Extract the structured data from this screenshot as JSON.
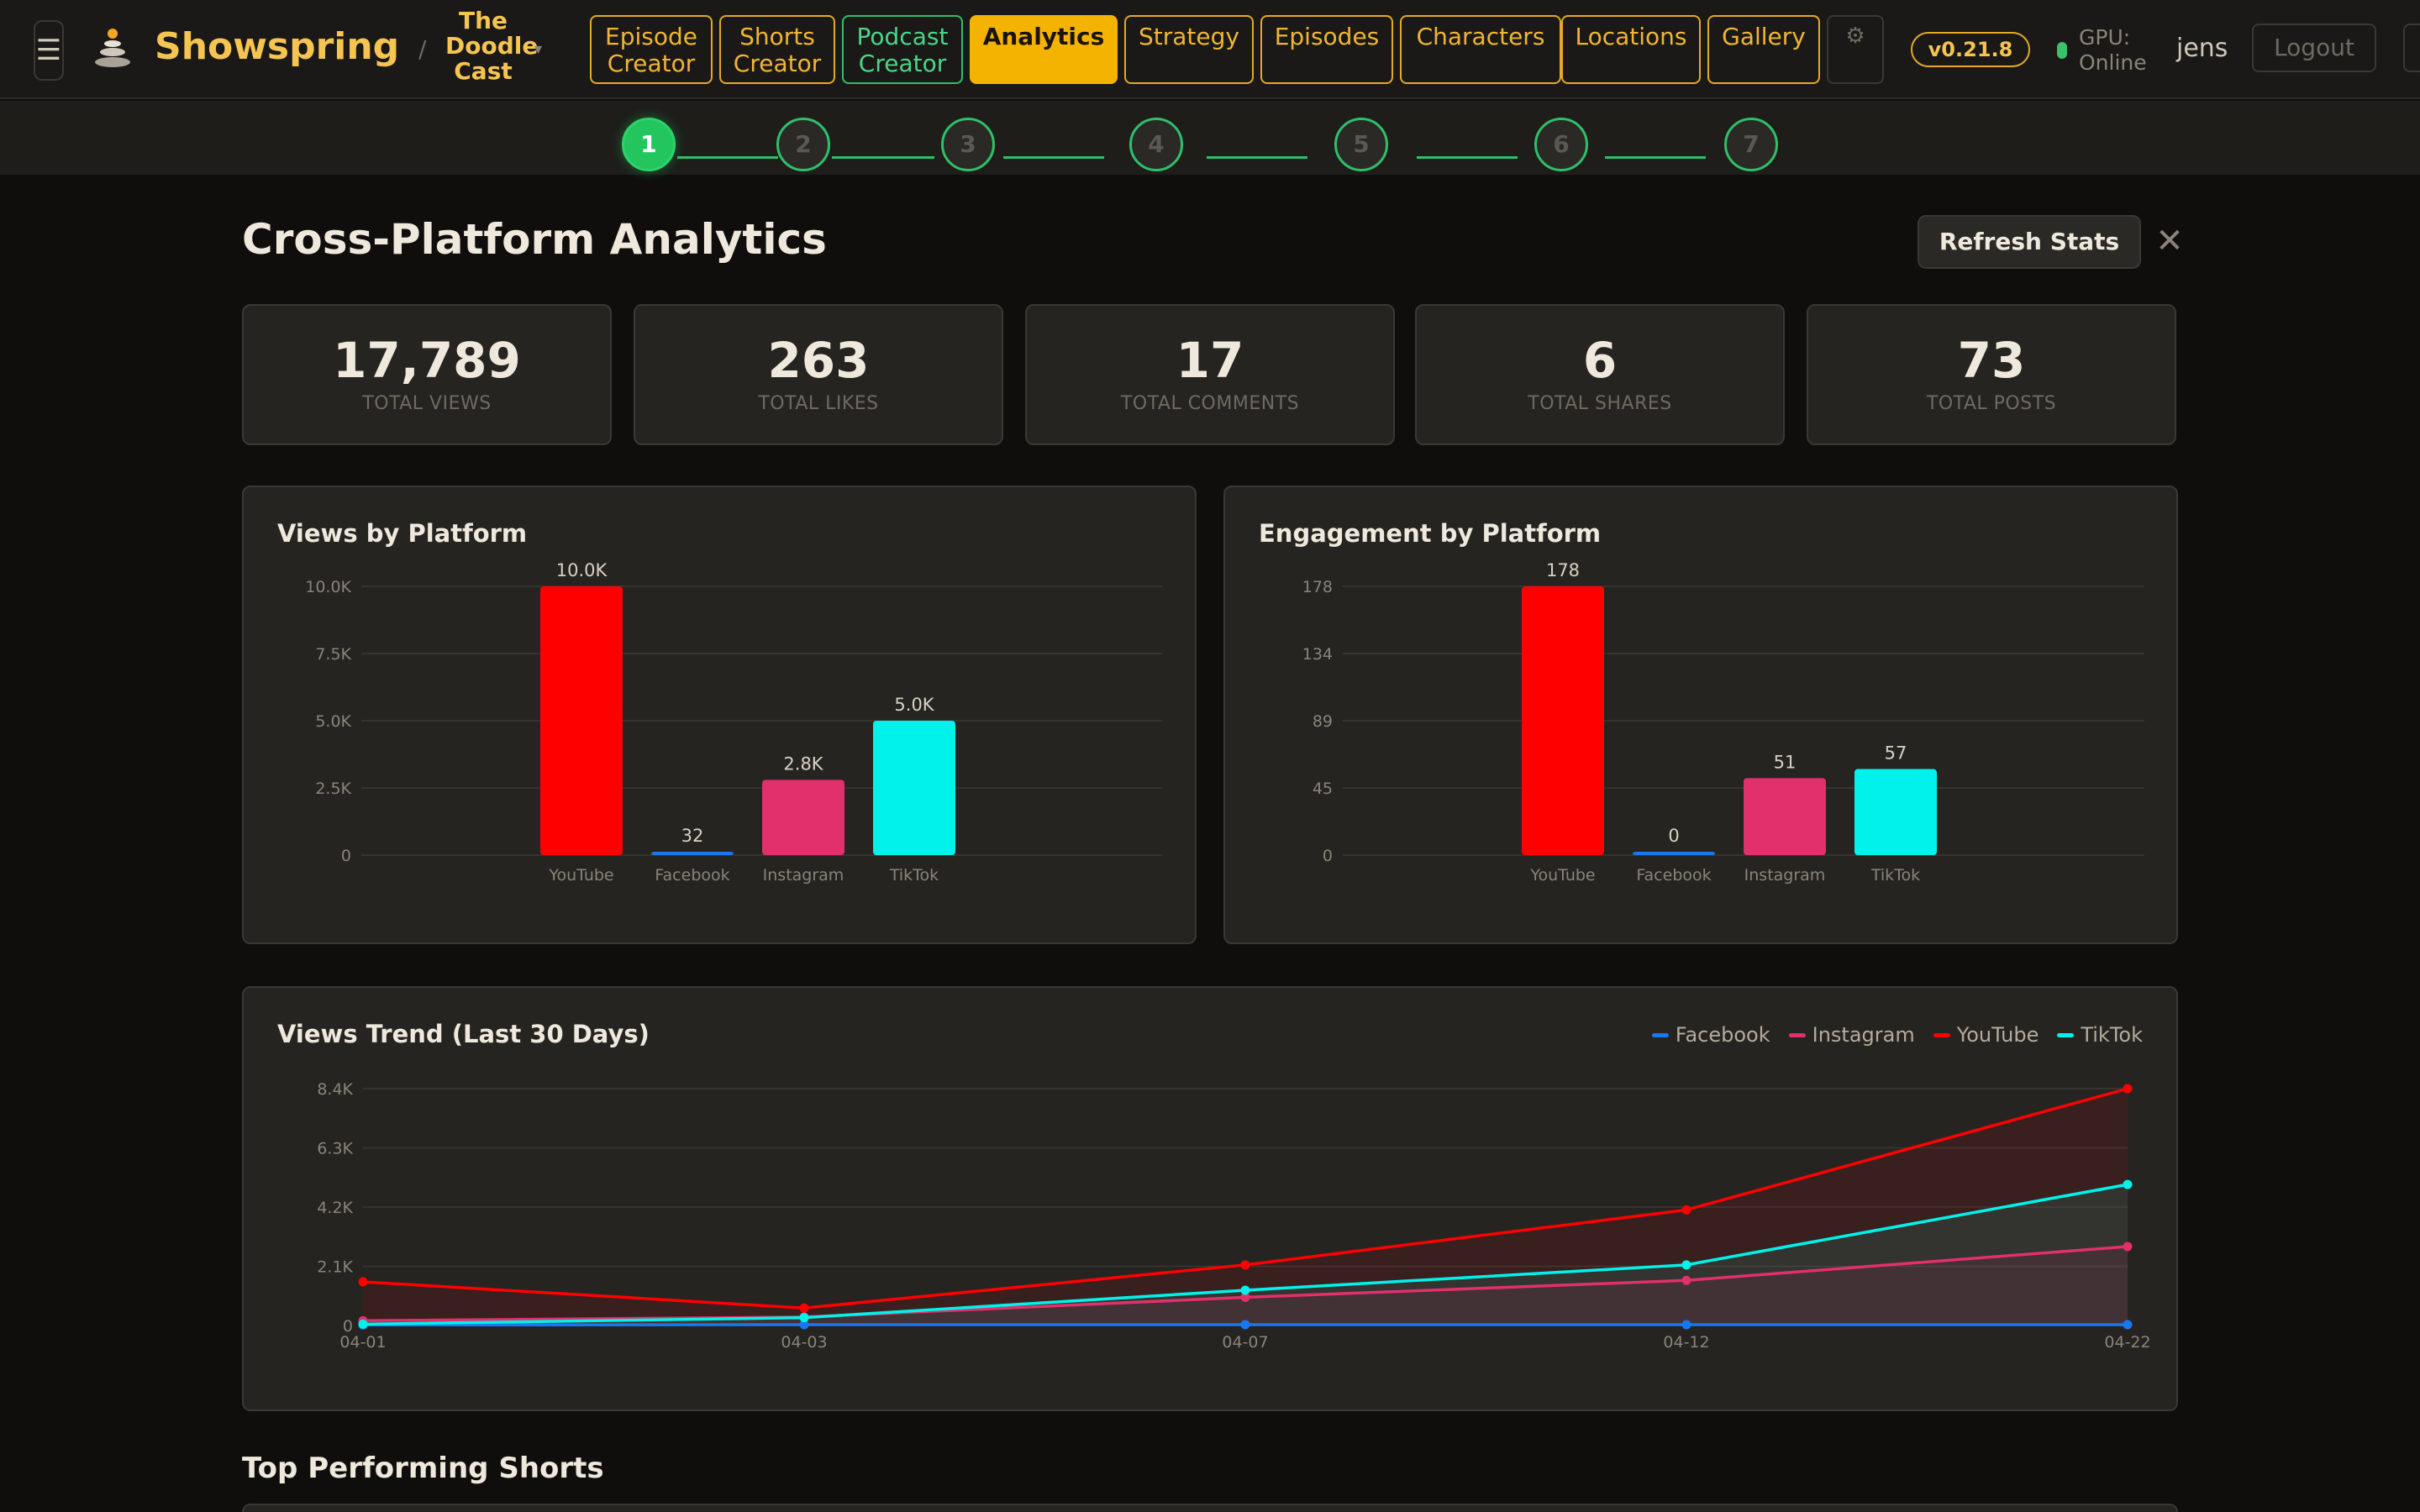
{
  "app": {
    "brand": "Showspring",
    "menu_icon": "☰",
    "separator": "/",
    "project_name": "The Doodle Cast",
    "project_caret": "▾",
    "nav_tabs": [
      {
        "label": "Episode Creator"
      },
      {
        "label": "Shorts Creator"
      },
      {
        "label": "Podcast Creator"
      },
      {
        "label": "Analytics"
      },
      {
        "label": "Strategy"
      },
      {
        "label": "Episodes"
      },
      {
        "label": "Characters"
      },
      {
        "label": "Locations"
      },
      {
        "label": "Gallery"
      }
    ],
    "active_tab": "Analytics",
    "settings_icon": "⚙",
    "version": "v0.21.8",
    "gpu_status": "GPU: Online",
    "user": "jens",
    "logout_label": "Logout"
  },
  "stepper": {
    "steps": [
      "1",
      "2",
      "3",
      "4",
      "5",
      "6",
      "7"
    ],
    "active_step": 1
  },
  "page": {
    "title": "Cross-Platform Analytics",
    "refresh_label": "Refresh Stats",
    "close_icon": "✕",
    "top_shorts_title": "Top Performing Shorts"
  },
  "stats": [
    {
      "value": "17,789",
      "label": "TOTAL VIEWS"
    },
    {
      "value": "263",
      "label": "TOTAL LIKES"
    },
    {
      "value": "17",
      "label": "TOTAL COMMENTS"
    },
    {
      "value": "6",
      "label": "TOTAL SHARES"
    },
    {
      "value": "73",
      "label": "TOTAL POSTS"
    }
  ],
  "colors": {
    "accent": "#f5b301",
    "YouTube": "#ff0000",
    "Facebook": "#1877f2",
    "Instagram": "#e1306c",
    "TikTok": "#00f2ea"
  },
  "chart_data": [
    {
      "type": "bar",
      "title": "Views by Platform",
      "categories": [
        "YouTube",
        "Facebook",
        "Instagram",
        "TikTok"
      ],
      "values": [
        10000,
        32,
        2800,
        5000
      ],
      "data_labels": [
        "10.0K",
        "32",
        "2.8K",
        "5.0K"
      ],
      "yticks": [
        "0",
        "2.5K",
        "5.0K",
        "7.5K",
        "10.0K"
      ],
      "ylim": [
        0,
        10000
      ],
      "grid": true
    },
    {
      "type": "bar",
      "title": "Engagement by Platform",
      "categories": [
        "YouTube",
        "Facebook",
        "Instagram",
        "TikTok"
      ],
      "values": [
        178,
        0,
        51,
        57
      ],
      "data_labels": [
        "178",
        "0",
        "51",
        "57"
      ],
      "yticks": [
        "0",
        "45",
        "89",
        "134",
        "178"
      ],
      "ylim": [
        0,
        178
      ],
      "grid": true
    },
    {
      "type": "line",
      "title": "Views Trend (Last 30 Days)",
      "x": [
        "04-01",
        "04-03",
        "04-07",
        "04-12",
        "04-22"
      ],
      "yticks": [
        "0",
        "2.1K",
        "4.2K",
        "6.3K",
        "8.4K"
      ],
      "ylim": [
        0,
        8400
      ],
      "legend_position": "top-right",
      "grid": true,
      "series": [
        {
          "name": "Facebook",
          "values": [
            20,
            30,
            30,
            30,
            30
          ]
        },
        {
          "name": "Instagram",
          "values": [
            170,
            300,
            1000,
            1600,
            2800
          ]
        },
        {
          "name": "YouTube",
          "values": [
            1550,
            620,
            2150,
            4100,
            8400
          ]
        },
        {
          "name": "TikTok",
          "values": [
            50,
            280,
            1250,
            2150,
            5000
          ]
        }
      ]
    }
  ]
}
